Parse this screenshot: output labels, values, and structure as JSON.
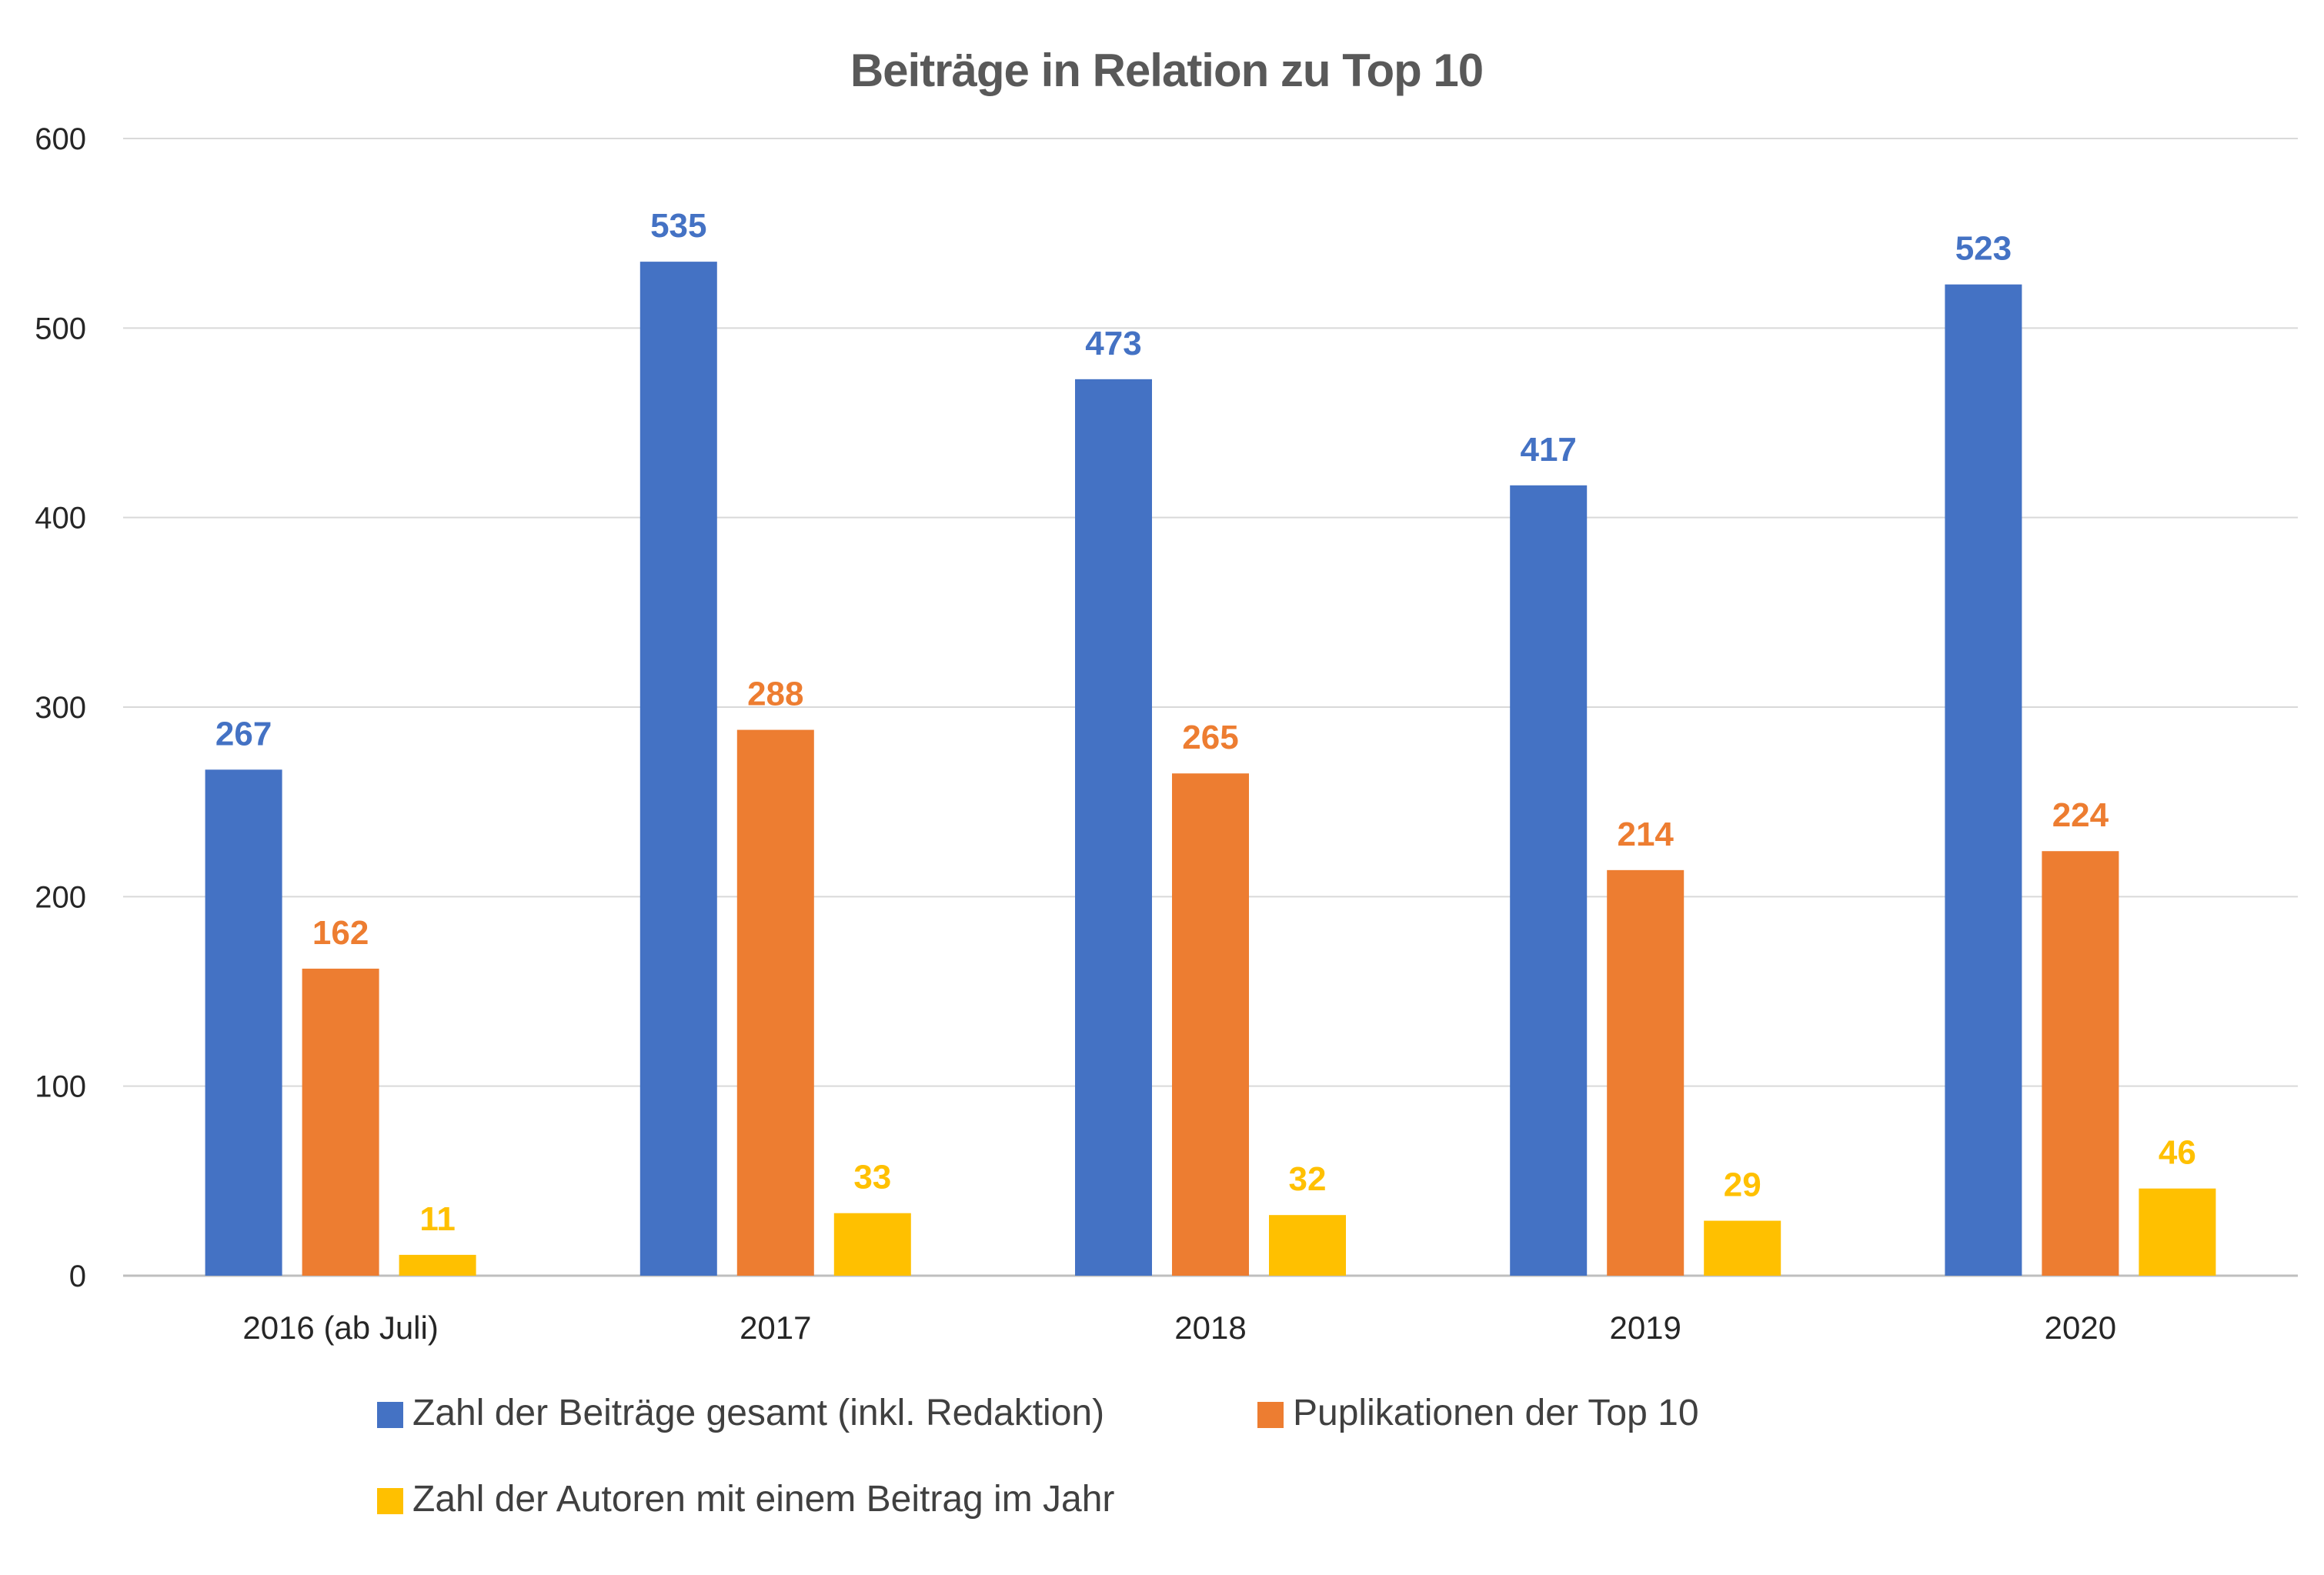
{
  "chart_data": {
    "type": "bar",
    "title": "Beiträge in Relation zu Top 10",
    "xlabel": "",
    "ylabel": "",
    "categories": [
      "2016 (ab Juli)",
      "2017",
      "2018",
      "2019",
      "2020"
    ],
    "series": [
      {
        "name": "Zahl der Beiträge gesamt (inkl. Redaktion)",
        "color": "#4472C4",
        "values": [
          267,
          535,
          473,
          417,
          523
        ]
      },
      {
        "name": "Puplikationen der Top 10",
        "color": "#ED7D31",
        "values": [
          162,
          288,
          265,
          214,
          224
        ]
      },
      {
        "name": "Zahl der Autoren mit einem Beitrag im Jahr",
        "color": "#FFC000",
        "values": [
          11,
          33,
          32,
          29,
          46
        ]
      }
    ],
    "ylim": [
      0,
      600
    ],
    "yticks": [
      0,
      100,
      200,
      300,
      400,
      500,
      600
    ],
    "grid": true,
    "legend_position": "bottom",
    "data_labels": true
  }
}
